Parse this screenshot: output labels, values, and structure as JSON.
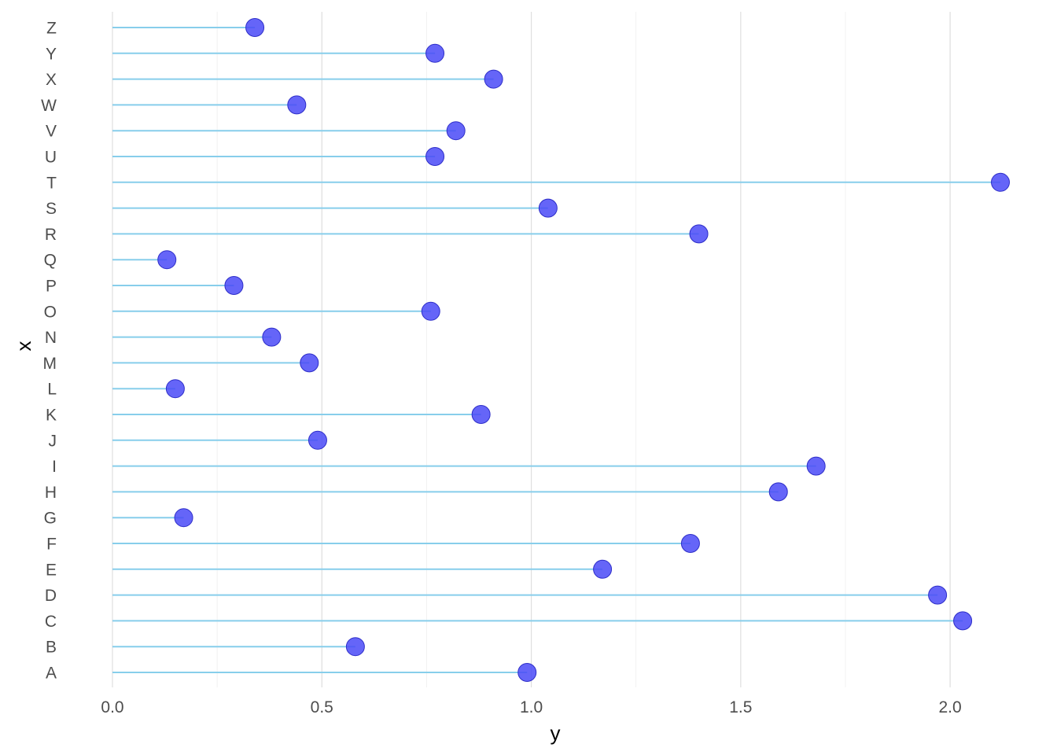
{
  "chart_data": {
    "type": "lollipop",
    "orientation": "horizontal",
    "categories": [
      "A",
      "B",
      "C",
      "D",
      "E",
      "F",
      "G",
      "H",
      "I",
      "J",
      "K",
      "L",
      "M",
      "N",
      "O",
      "P",
      "Q",
      "R",
      "S",
      "T",
      "U",
      "V",
      "W",
      "X",
      "Y",
      "Z"
    ],
    "values": [
      0.99,
      0.58,
      2.03,
      1.97,
      1.17,
      1.38,
      0.17,
      1.59,
      1.68,
      0.49,
      0.88,
      0.15,
      0.47,
      0.38,
      0.76,
      0.29,
      0.13,
      1.4,
      1.04,
      2.12,
      0.77,
      0.82,
      0.44,
      0.91,
      0.77,
      0.34
    ],
    "xlabel": "y",
    "ylabel": "x",
    "xlim": [
      0,
      2.12
    ],
    "x_ticks": [
      0.0,
      0.5,
      1.0,
      1.5,
      2.0
    ],
    "x_tick_labels": [
      "0.0",
      "0.5",
      "1.0",
      "1.5",
      "2.0"
    ],
    "minor_ticks": [
      0.25,
      0.75,
      1.25,
      1.75
    ],
    "grid": "vertical major and minor",
    "colors": {
      "stem": "#87ceeb",
      "point_fill": "#4a4af7",
      "point_stroke": "#2e2ec8"
    }
  }
}
